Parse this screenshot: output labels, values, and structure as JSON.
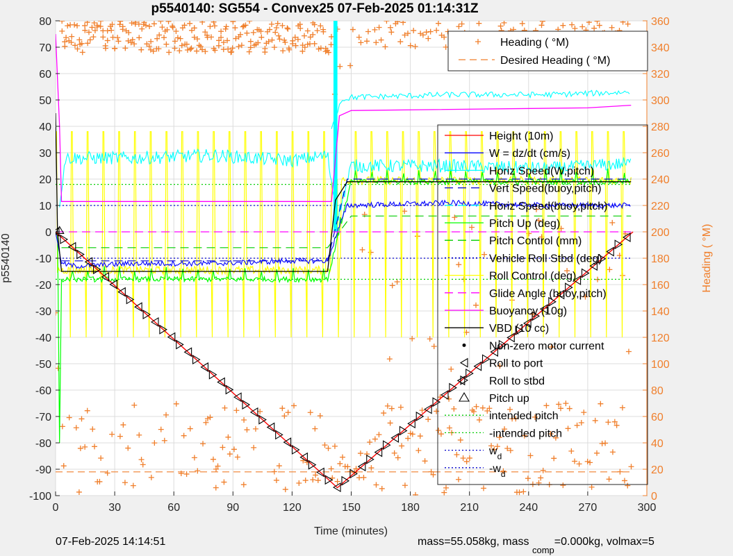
{
  "footer": {
    "timestamp": "07-Feb-2025 14:14:51",
    "mass_text": "mass=55.058kg, mass ",
    "comp_sub": "comp",
    "volmax_text": "=0.000kg, volmax=5"
  },
  "chart_data": {
    "type": "line",
    "title": "p5540140: SG554 - Convex25 07-Feb-2025 01:14:31Z",
    "xlabel": "Time (minutes)",
    "ylabel": "p5540140",
    "y2label": "Heading (  °M)",
    "xlim": [
      0,
      300
    ],
    "ylim": [
      -100,
      80
    ],
    "y2lim": [
      0,
      360
    ],
    "xticks": [
      0,
      30,
      60,
      90,
      120,
      150,
      180,
      210,
      240,
      270,
      300
    ],
    "yticks": [
      -100,
      -90,
      -80,
      -70,
      -60,
      -50,
      -40,
      -30,
      -20,
      -10,
      0,
      10,
      20,
      30,
      40,
      50,
      60,
      70,
      80
    ],
    "y2ticks": [
      0,
      20,
      40,
      60,
      80,
      100,
      120,
      140,
      160,
      180,
      200,
      220,
      240,
      260,
      280,
      300,
      320,
      340,
      360
    ],
    "grid": true,
    "colors": {
      "height": "#ff0000",
      "w": "#0000ff",
      "horiz_speed": "#00ffff",
      "pitch_up": "#00ff00",
      "roll_control": "#ffff00",
      "buoyancy": "#ff00ff",
      "vbd": "#000000",
      "heading": "#f07f2b",
      "glide_angle": "#ff00ff"
    },
    "heading_legend": {
      "location": "top-right",
      "entries": [
        "Heading (  °M)",
        "Desired Heading (  °M)"
      ]
    },
    "main_legend": {
      "location": "right",
      "entries": [
        "Height (10m)",
        "W = dz/dt (cm/s)",
        "Horiz Speed(W,pitch)",
        "Vert Speed(buoy,pitch)",
        "Horiz Speed(buoy,pitch)",
        "Pitch Up (deg)",
        "Pitch Control (mm)",
        "Vehicle Roll Stbd (deg)",
        "Roll Control (deg)",
        "Glide Angle (buoy,pitch)",
        "Buoyancy (10g)",
        "VBD (10 cc)",
        "Non-zero motor current",
        "Roll to port",
        "Roll to stbd",
        "Pitch up",
        "intended pitch",
        "-intended pitch",
        "w",
        "-w"
      ],
      "subscripts": {
        "18": "d",
        "19": "d"
      }
    },
    "series": [
      {
        "name": "Height (10m)",
        "x": [
          0,
          143,
          293
        ],
        "y": [
          0,
          -97,
          0
        ]
      },
      {
        "name": "W = dz/dt (cm/s)",
        "x": [
          0,
          3,
          10,
          40,
          80,
          120,
          138,
          143,
          148,
          200,
          250,
          292
        ],
        "y": [
          0,
          -12,
          -13,
          -12,
          -12,
          -11,
          -11,
          0,
          10,
          11,
          10,
          10
        ]
      },
      {
        "name": "Horiz Speed(W,pitch)",
        "x": [
          0,
          5,
          40,
          80,
          120,
          138,
          143,
          150,
          200,
          250,
          292
        ],
        "y": [
          0,
          28,
          28,
          29,
          27,
          29,
          5,
          25,
          25,
          24,
          26
        ]
      },
      {
        "name": "Vert Speed(buoy,pitch)",
        "x": [
          3,
          138,
          148,
          292
        ],
        "y": [
          -11,
          -11,
          20,
          20
        ]
      },
      {
        "name": "Horiz Speed(buoy,pitch)",
        "x": [
          140,
          145,
          150,
          200,
          250,
          292
        ],
        "y": [
          40,
          50,
          51,
          52,
          52,
          53
        ]
      },
      {
        "name": "Pitch Up (deg)",
        "x": [
          3,
          138,
          150,
          292
        ],
        "y": [
          -18,
          -18,
          19,
          19
        ]
      },
      {
        "name": "Pitch Control (mm)",
        "x": [
          3,
          138,
          150,
          292
        ],
        "y": [
          -6,
          -6,
          6,
          6
        ]
      },
      {
        "name": "Buoyancy (10g)",
        "x": [
          0,
          2,
          3,
          140,
          144,
          150,
          270,
          292
        ],
        "y": [
          75,
          40,
          11.5,
          11.5,
          44,
          46,
          47,
          48
        ]
      },
      {
        "name": "VBD (10 cc)",
        "x": [
          0,
          1,
          3,
          138,
          142,
          148,
          292
        ],
        "y": [
          45,
          0,
          -15,
          -15,
          12,
          19,
          19
        ]
      },
      {
        "name": "Glide Angle (buoy,pitch)",
        "x": [
          0,
          292
        ],
        "y": [
          0,
          0
        ]
      },
      {
        "name": "intended pitch",
        "x": [
          0,
          292
        ],
        "y": [
          18,
          18
        ]
      },
      {
        "name": "-intended pitch",
        "x": [
          0,
          292
        ],
        "y": [
          -18,
          -18
        ]
      },
      {
        "name": "w",
        "x": [
          0,
          292
        ],
        "y": [
          10,
          10
        ]
      },
      {
        "name": "-w",
        "x": [
          0,
          292
        ],
        "y": [
          -10,
          -10
        ]
      },
      {
        "name": "Desired Heading (  °M)",
        "axis": "right",
        "x": [
          0,
          292
        ],
        "y": [
          18,
          18
        ]
      }
    ],
    "heading_summary": {
      "axis": "right",
      "dive_range": [
        335,
        360
      ],
      "bottom_cluster": [
        0,
        70
      ],
      "notes": "Heading scattered mostly near 340-360 and 0-70 degrees M through the dive"
    }
  }
}
